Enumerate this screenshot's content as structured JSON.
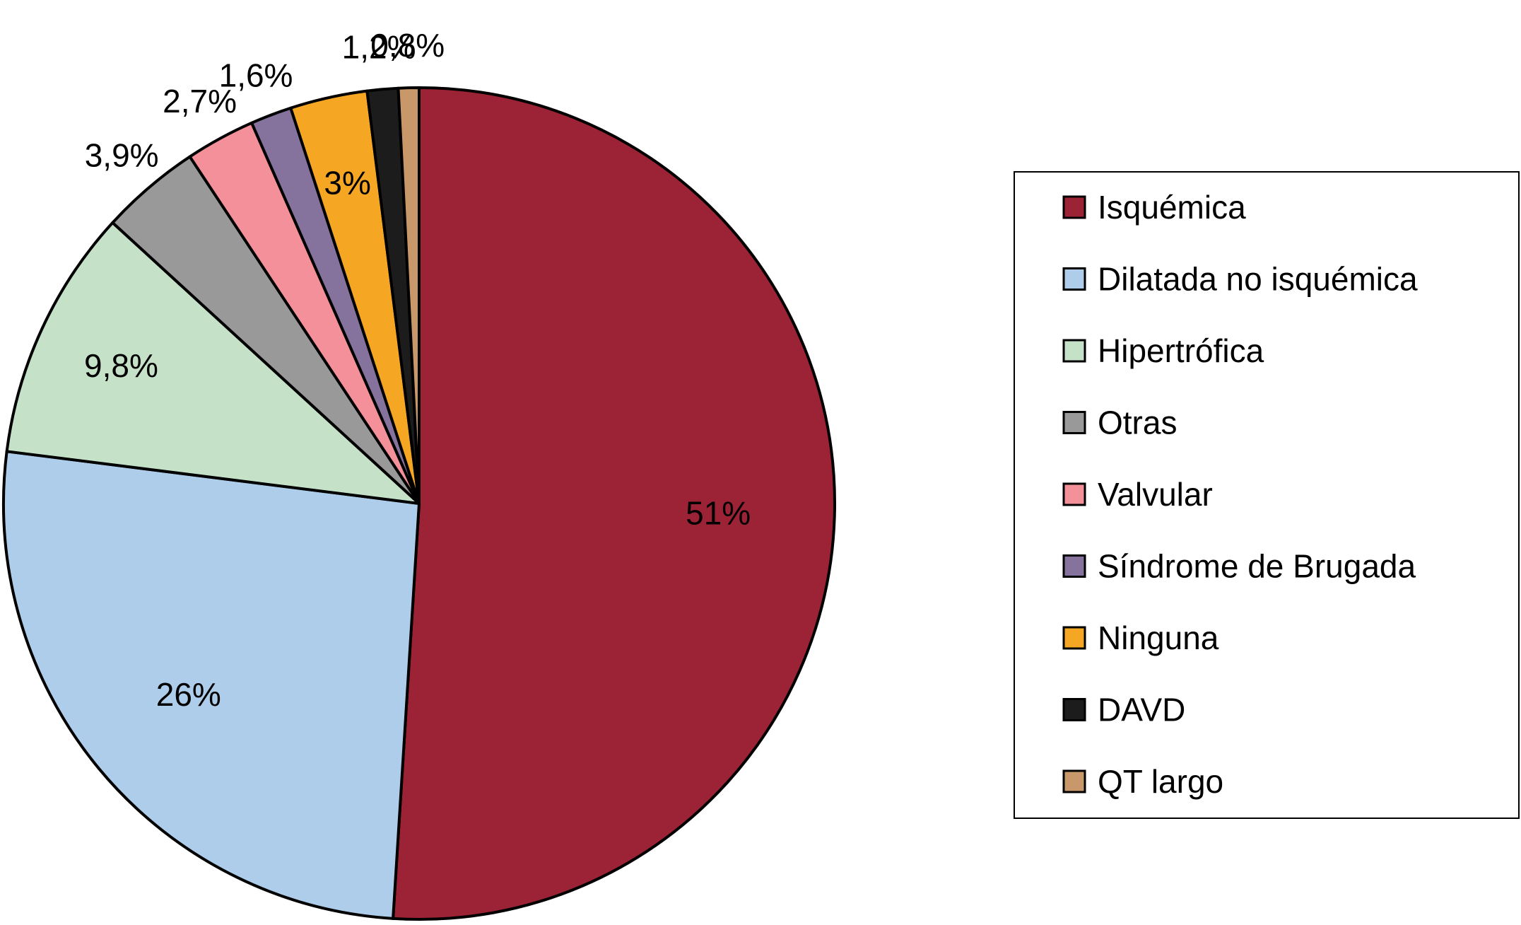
{
  "chart_data": {
    "type": "pie",
    "title": "",
    "start_angle": "12 o'clock",
    "direction": "clockwise",
    "legend_placement": "right",
    "slices": [
      {
        "label": "Isquémica",
        "value": 51,
        "value_label": "51%",
        "color": "#9B2335",
        "label_position": "inside"
      },
      {
        "label": "Dilatada no isquémica",
        "value": 26,
        "value_label": "26%",
        "color": "#AECDEB",
        "label_position": "inside"
      },
      {
        "label": "Hipertrófica",
        "value": 9.8,
        "value_label": "9,8%",
        "color": "#C5E2C8",
        "label_position": "inside"
      },
      {
        "label": "Otras",
        "value": 3.9,
        "value_label": "3,9%",
        "color": "#999999",
        "label_position": "outside"
      },
      {
        "label": "Valvular",
        "value": 2.7,
        "value_label": "2,7%",
        "color": "#F4909A",
        "label_position": "outside"
      },
      {
        "label": "Síndrome de Brugada",
        "value": 1.6,
        "value_label": "1,6%",
        "color": "#85739E",
        "label_position": "outside"
      },
      {
        "label": "Ninguna",
        "value": 3,
        "value_label": "3%",
        "color": "#F5A623",
        "label_position": "inside"
      },
      {
        "label": "DAVD",
        "value": 1.2,
        "value_label": "1,2%",
        "color": "#1C1C1C",
        "label_position": "outside"
      },
      {
        "label": "QT largo",
        "value": 0.8,
        "value_label": "0,8%",
        "color": "#C8976A",
        "label_position": "outside"
      }
    ]
  }
}
